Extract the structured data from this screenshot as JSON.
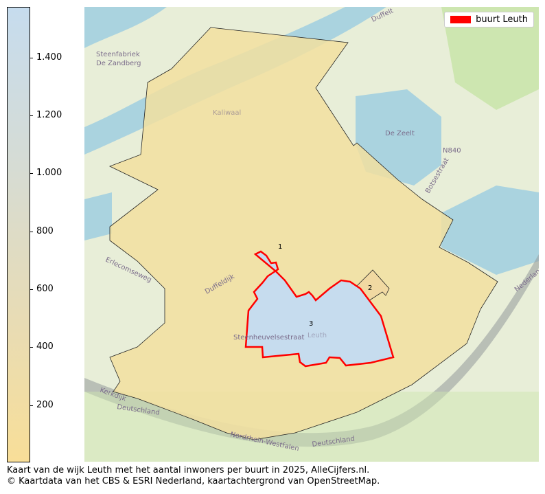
{
  "colorbar": {
    "ticks": [
      "1.400",
      "1.200",
      "1.000",
      "800",
      "600",
      "400",
      "200"
    ],
    "tick_values": [
      1400,
      1200,
      1000,
      800,
      600,
      400,
      200
    ],
    "range": [
      5,
      1575
    ],
    "color_low": "#f8de98",
    "color_high": "#c6dcee"
  },
  "legend": {
    "label": "buurt Leuth",
    "color": "#ff0000"
  },
  "map": {
    "buurten": [
      {
        "label": "1",
        "fill": "#f2dfa0"
      },
      {
        "label": "2",
        "fill": "#f1d9a2"
      },
      {
        "label": "3",
        "fill": "#c6dcee",
        "highlighted": true
      }
    ],
    "place_labels": [
      "Steenfabriek",
      "De Zandberg",
      "Kaliwaal",
      "De Zeelt",
      "N840",
      "Botsestraat",
      "Duffelt",
      "Erlecomseweg",
      "Leuth",
      "Steenheuvelsestraat",
      "Deutschland",
      "Nordrhein-Westfalen",
      "Nederland",
      "Kerkdijk",
      "Duffeldijk"
    ]
  },
  "caption": {
    "line1": "Kaart van de wijk Leuth met het aantal inwoners per buurt in 2025, AlleCijfers.nl.",
    "line2": "© Kaartdata van het CBS & ESRI Nederland, kaartachtergrond van OpenStreetMap."
  }
}
